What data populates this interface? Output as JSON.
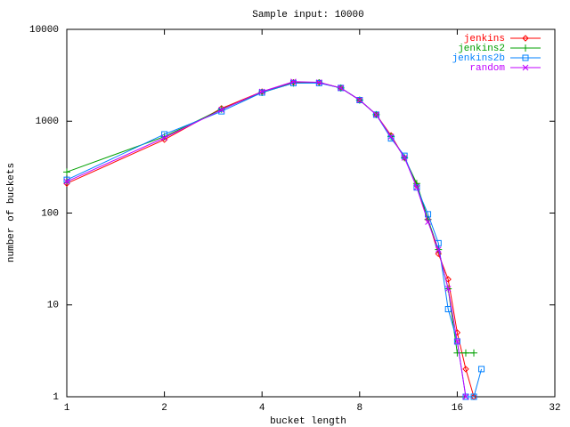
{
  "chart_data": {
    "type": "line",
    "title": "Sample input: 10000",
    "x_label": "bucket length",
    "y_label": "number of buckets",
    "x_scale": "log",
    "y_scale": "log",
    "legend": "top-right",
    "xlim": [
      1,
      32
    ],
    "xticks": [
      1,
      2,
      4,
      8,
      16,
      32
    ],
    "ylim": [
      1,
      10000
    ],
    "yticks": [
      1,
      10,
      100,
      1000,
      10000
    ],
    "series": [
      {
        "name": "jenkins",
        "color": "#ff0000",
        "marker": "diamond",
        "x": [
          1,
          2,
          3,
          4,
          5,
          6,
          7,
          8,
          9,
          10,
          11,
          12,
          13,
          14,
          15,
          16,
          17,
          18
        ],
        "values": [
          210,
          630,
          1380,
          2100,
          2650,
          2650,
          2300,
          1700,
          1180,
          700,
          400,
          200,
          85,
          36,
          19,
          5,
          2,
          1
        ]
      },
      {
        "name": "jenkins2",
        "color": "#00a000",
        "marker": "plus",
        "x": [
          1,
          2,
          3,
          4,
          5,
          6,
          7,
          8,
          9,
          10,
          11,
          12,
          13,
          14,
          15,
          16,
          17,
          18
        ],
        "values": [
          280,
          680,
          1350,
          2050,
          2600,
          2620,
          2300,
          1700,
          1180,
          680,
          400,
          210,
          85,
          40,
          15,
          3,
          3,
          3
        ]
      },
      {
        "name": "jenkins2b",
        "color": "#0080ff",
        "marker": "square",
        "x": [
          1,
          2,
          3,
          4,
          5,
          6,
          7,
          8,
          9,
          10,
          11,
          12,
          13,
          14,
          15,
          16,
          17,
          18,
          19
        ],
        "values": [
          230,
          720,
          1280,
          2050,
          2600,
          2600,
          2300,
          1700,
          1180,
          650,
          420,
          190,
          97,
          47,
          9,
          4,
          1,
          1,
          2
        ]
      },
      {
        "name": "random",
        "color": "#c000ff",
        "marker": "x",
        "x": [
          1,
          2,
          3,
          4,
          5,
          6,
          7,
          8,
          9,
          10,
          11,
          12,
          13,
          14,
          15,
          16,
          17
        ],
        "values": [
          220,
          660,
          1330,
          2100,
          2700,
          2650,
          2300,
          1700,
          1180,
          680,
          400,
          190,
          80,
          40,
          15,
          4,
          1
        ]
      }
    ]
  }
}
